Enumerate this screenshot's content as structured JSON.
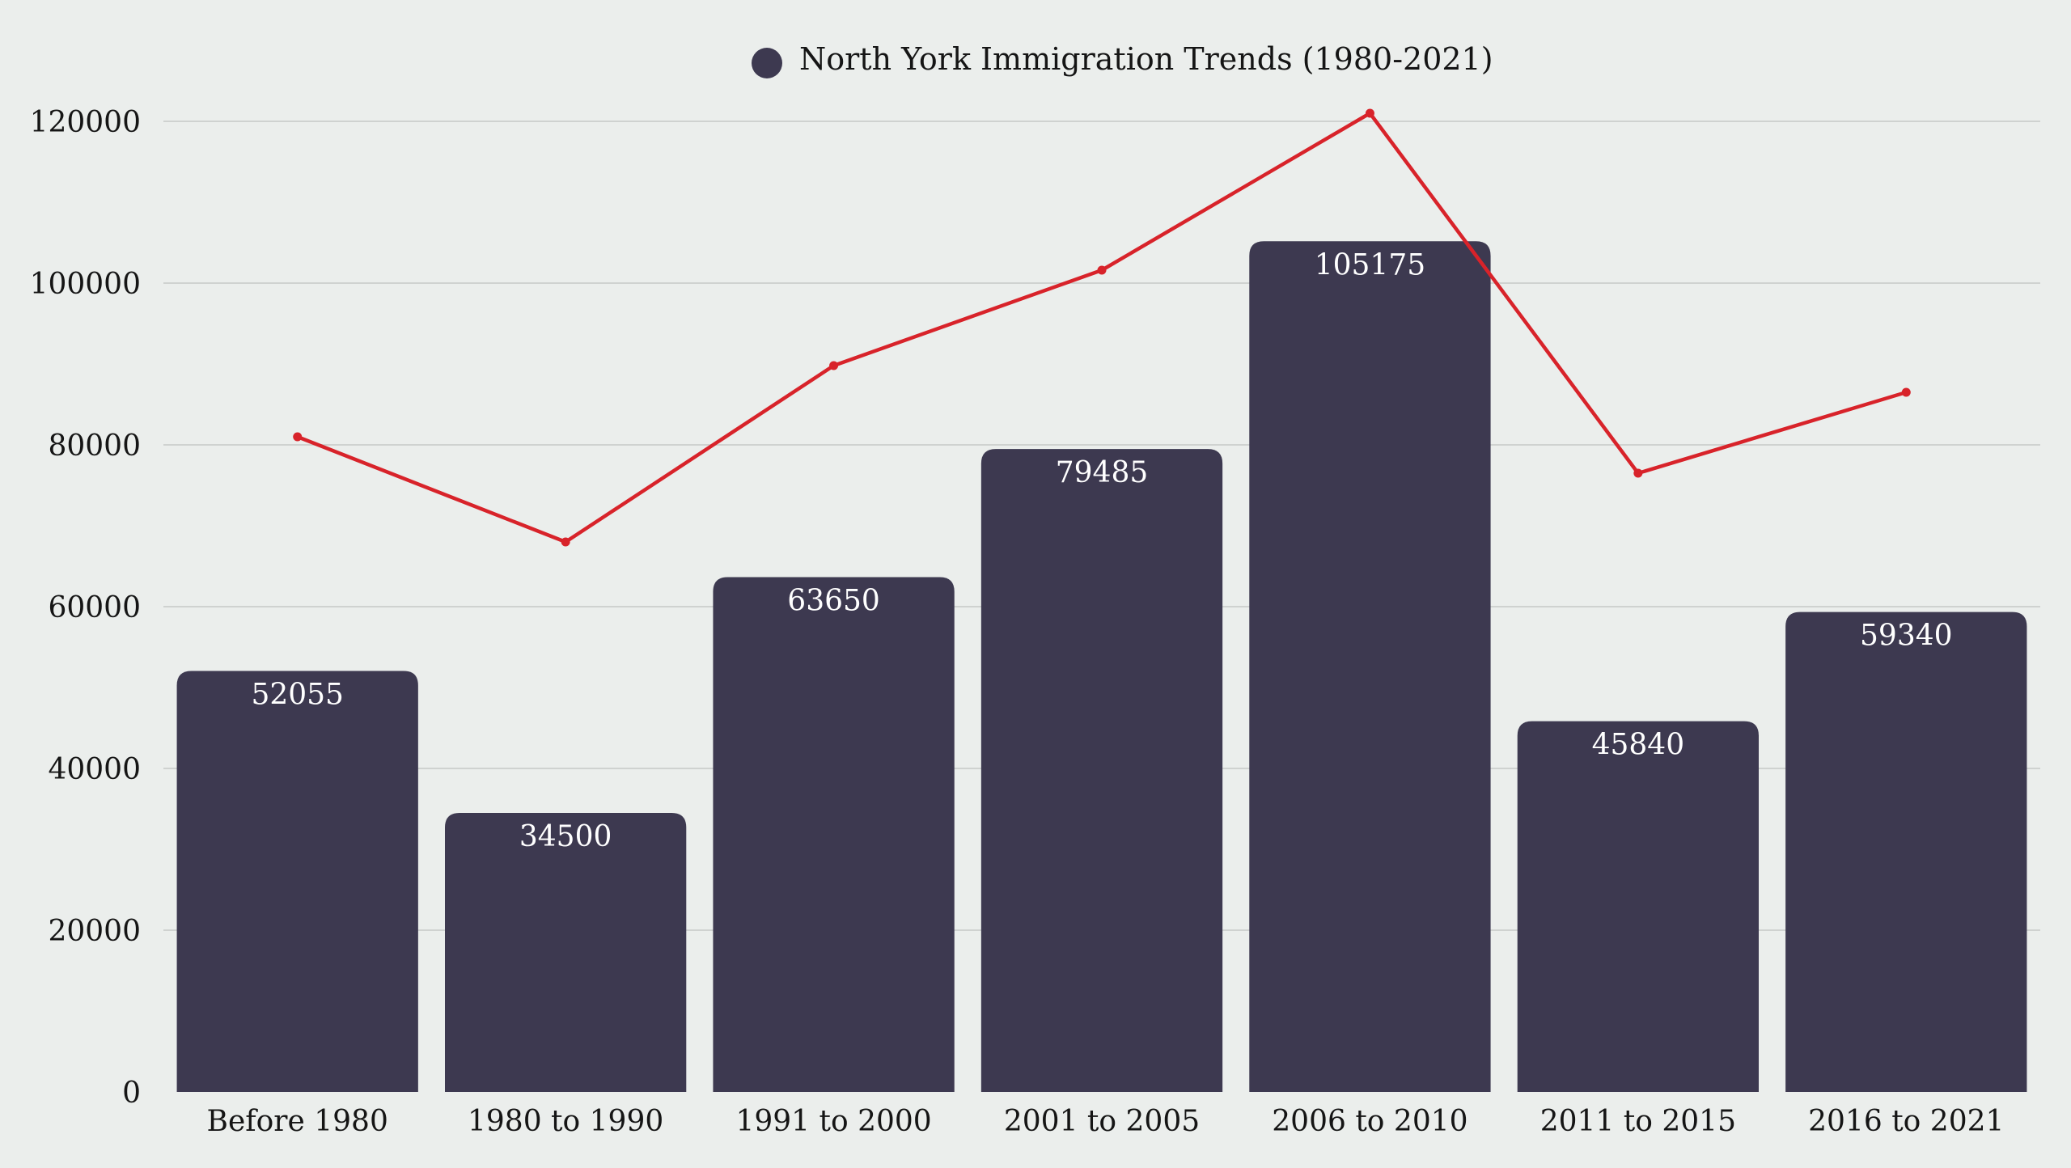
{
  "chart_data": {
    "type": "bar",
    "title": "",
    "xlabel": "",
    "ylabel": "",
    "ylim": [
      0,
      120000
    ],
    "yticks": [
      0,
      20000,
      40000,
      60000,
      80000,
      100000,
      120000
    ],
    "grid": true,
    "legend_position": "top-center",
    "categories": [
      "Before 1980",
      "1980 to 1990",
      "1991 to 2000",
      "2001 to 2005",
      "2006 to 2010",
      "2011 to 2015",
      "2016 to 2021"
    ],
    "series": [
      {
        "name": "North York Immigration Trends (1980-2021)",
        "type": "bar",
        "color": "#3d3950",
        "values": [
          52055,
          34500,
          63650,
          79485,
          105175,
          45840,
          59340
        ],
        "show_data_labels": true
      },
      {
        "type": "line",
        "color": "#d8232a",
        "values": [
          81000,
          68000,
          89800,
          101600,
          121000,
          76500,
          86500
        ],
        "show_data_labels": false
      }
    ]
  },
  "colors": {
    "background": "#ebeeec",
    "bar": "#3d3950",
    "line": "#d8232a",
    "grid": "#cfd2d0",
    "text": "#151515",
    "bar_label": "#ffffff"
  }
}
